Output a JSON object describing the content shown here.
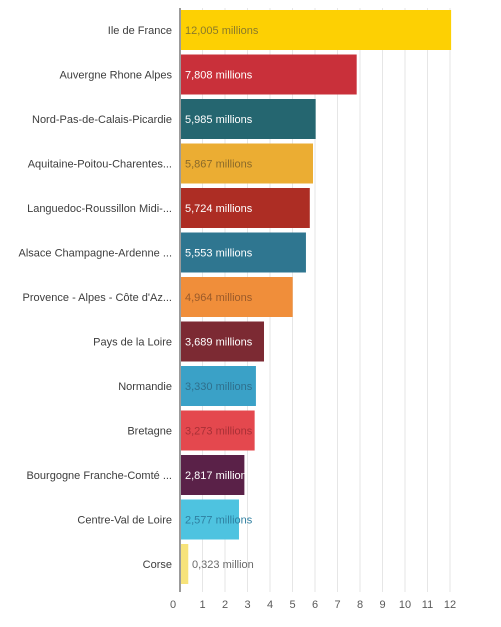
{
  "chart_data": {
    "type": "bar",
    "orientation": "horizontal",
    "title": "",
    "xlabel": "",
    "ylabel": "",
    "xlim": [
      0,
      12
    ],
    "xticks": [
      "0",
      "1",
      "2",
      "3",
      "4",
      "5",
      "6",
      "7",
      "8",
      "9",
      "10",
      "11",
      "12"
    ],
    "grid": true,
    "categories": [
      "Ile de France",
      "Auvergne Rhone Alpes",
      "Nord-Pas-de-Calais-Picardie",
      "Aquitaine-Poitou-Charentes...",
      "Languedoc-Roussillon Midi-...",
      "Alsace Champagne-Ardenne ...",
      "Provence - Alpes - Côte d'Az...",
      "Pays de la Loire",
      "Normandie",
      "Bretagne",
      "Bourgogne Franche-Comté ...",
      "Centre-Val de Loire",
      "Corse"
    ],
    "values": [
      12.005,
      7.808,
      5.985,
      5.867,
      5.724,
      5.553,
      4.964,
      3.689,
      3.33,
      3.273,
      2.817,
      2.577,
      0.323
    ],
    "value_labels": [
      "12,005 millions",
      "7,808 millions",
      "5,985 millions",
      "5,867 millions",
      "5,724 millions",
      "5,553 millions",
      "4,964 millions",
      "3,689 millions",
      "3,330 millions",
      "3,273 millions",
      "2,817 million",
      "2,577 millions",
      "0,323 million"
    ],
    "colors": [
      "#fdd003",
      "#c9303a",
      "#256670",
      "#ebad33",
      "#ad2d24",
      "#2f7690",
      "#f08e3a",
      "#7c2a33",
      "#3aa1c7",
      "#e4484e",
      "#5a2148",
      "#4ec3e0",
      "#f7e37a"
    ],
    "label_colors": [
      "#8a7a2a",
      "#ffffff",
      "#ffffff",
      "#8a6a2a",
      "#ffffff",
      "#ffffff",
      "#9a5a2a",
      "#ffffff",
      "#2f6f8c",
      "#a83036",
      "#ffffff",
      "#2e7fa0",
      "#6a6a6a"
    ]
  }
}
